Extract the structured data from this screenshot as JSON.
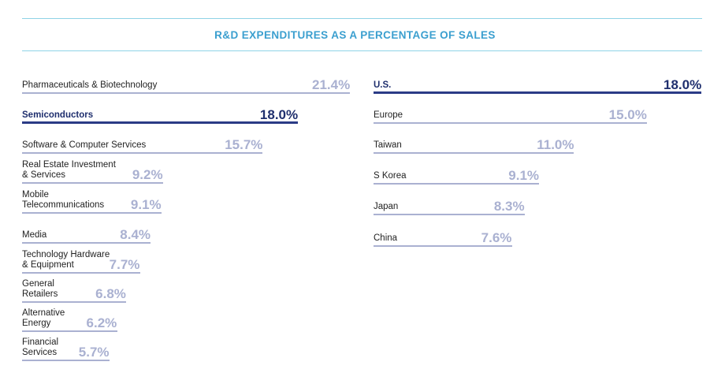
{
  "title": "R&D EXPENDITURES AS A PERCENTAGE OF SALES",
  "colors": {
    "accent": "#3b9fcf",
    "bar": "#aab1d1",
    "highlight": "#2b3b86",
    "rule": "#8fd3e6"
  },
  "chart_data": [
    {
      "type": "bar",
      "orientation": "horizontal",
      "xlim": [
        0,
        21.4
      ],
      "categories": [
        "Pharmaceuticals & Biotechnology",
        "Semiconductors",
        "Software & Computer Services",
        "Real Estate Investment\n& Services",
        "Mobile\nTelecommunications",
        "Media",
        "Technology Hardware\n& Equipment",
        "General\nRetailers",
        "Alternative\nEnergy",
        "Financial\nServices"
      ],
      "values": [
        21.4,
        18.0,
        15.7,
        9.2,
        9.1,
        8.4,
        7.7,
        6.8,
        6.2,
        5.7
      ],
      "value_labels": [
        "21.4%",
        "18.0%",
        "15.7%",
        "9.2%",
        "9.1%",
        "8.4%",
        "7.7%",
        "6.8%",
        "6.2%",
        "5.7%"
      ],
      "highlight": [
        false,
        true,
        false,
        false,
        false,
        false,
        false,
        false,
        false,
        false
      ]
    },
    {
      "type": "bar",
      "orientation": "horizontal",
      "xlim": [
        0,
        18.0
      ],
      "categories": [
        "U.S.",
        "Europe",
        "Taiwan",
        "S Korea",
        "Japan",
        "China"
      ],
      "values": [
        18.0,
        15.0,
        11.0,
        9.1,
        8.3,
        7.6
      ],
      "value_labels": [
        "18.0%",
        "15.0%",
        "11.0%",
        "9.1%",
        "8.3%",
        "7.6%"
      ],
      "highlight": [
        true,
        false,
        false,
        false,
        false,
        false
      ]
    }
  ]
}
